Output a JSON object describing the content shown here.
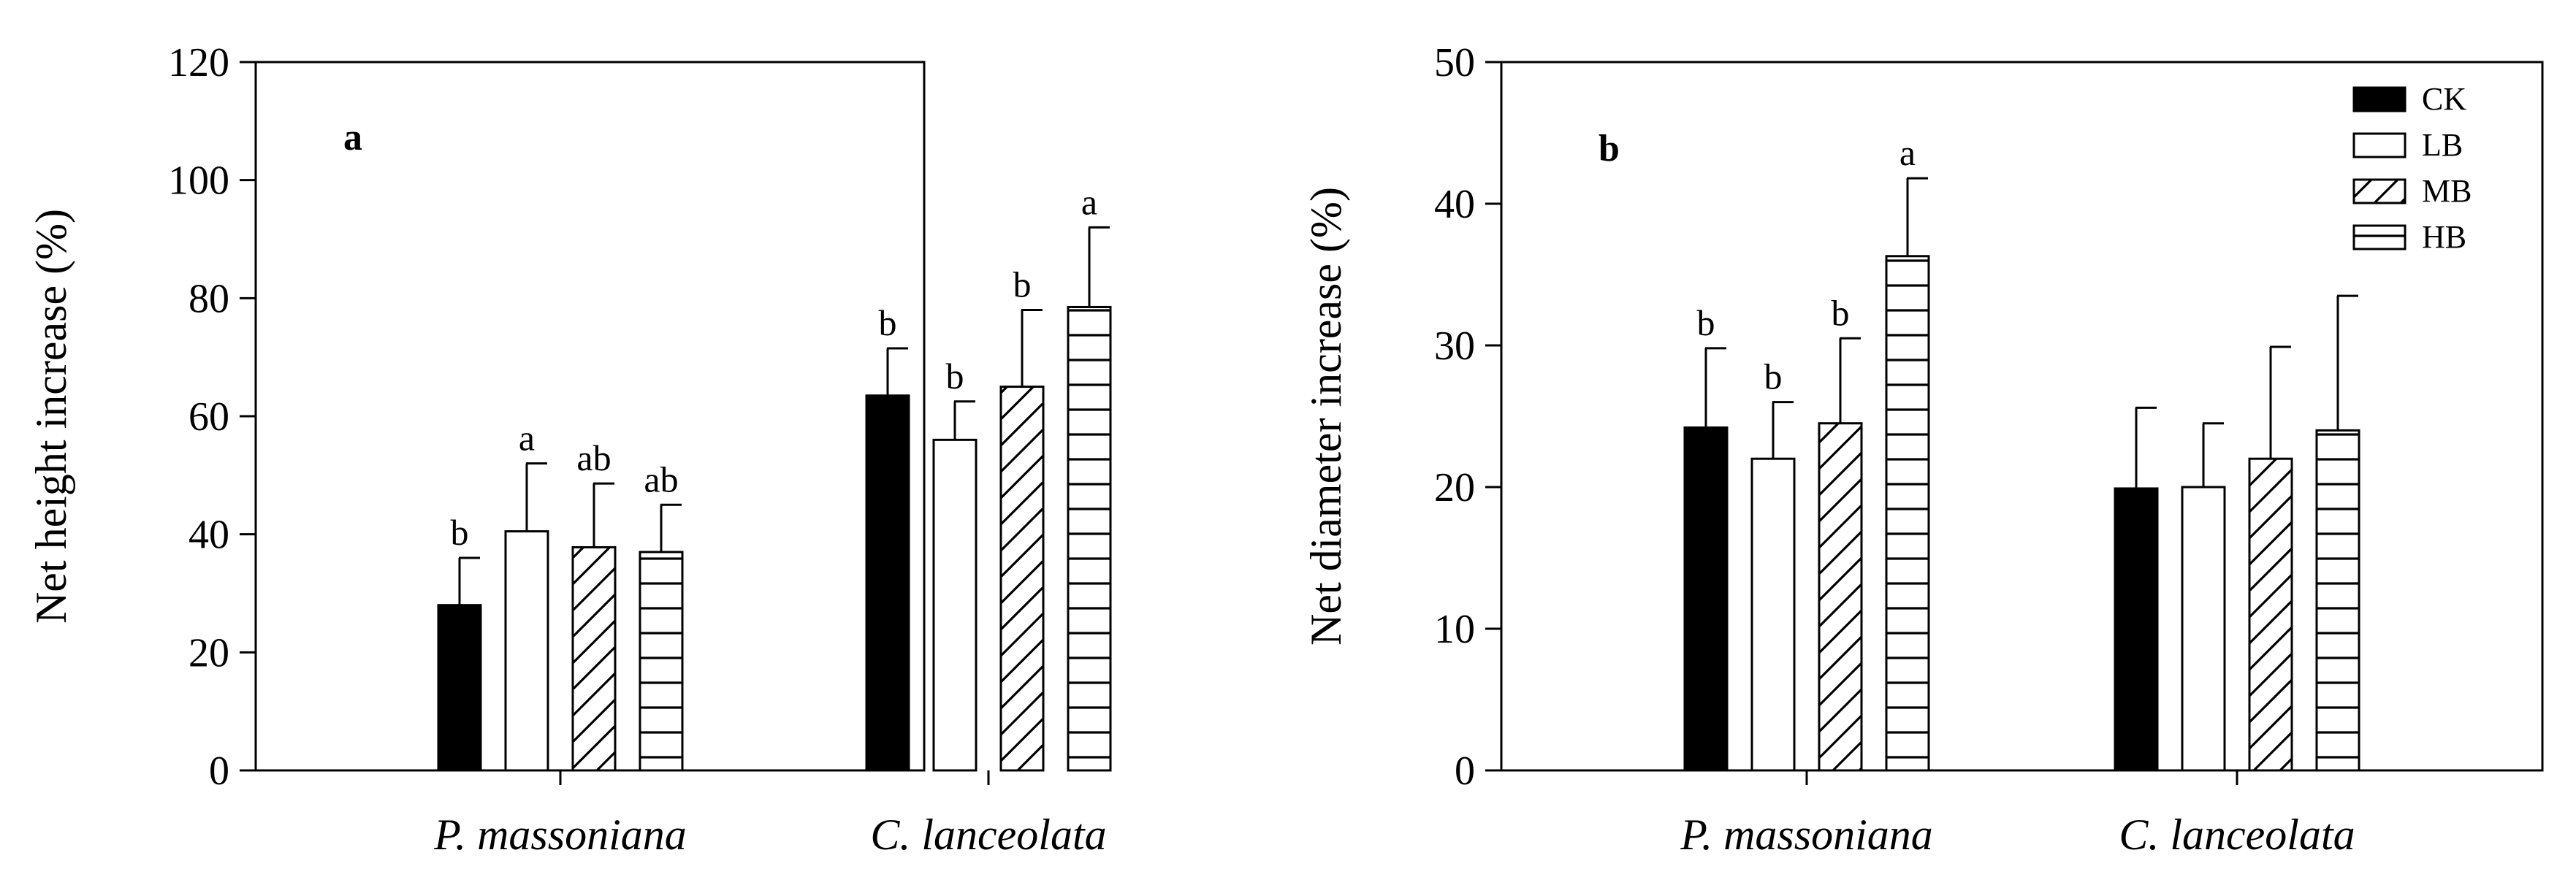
{
  "chart_data": [
    {
      "type": "bar",
      "panel_label": "a",
      "ylabel": "Net height increase (%)",
      "xlabel": "",
      "ylim": [
        0,
        120
      ],
      "yticks": [
        0,
        20,
        40,
        60,
        80,
        100,
        120
      ],
      "categories": [
        "P. massoniana",
        "C. lanceolata"
      ],
      "grid": false,
      "series": [
        {
          "name": "CK",
          "pattern": "solid",
          "values": [
            28,
            63.5
          ],
          "errors": [
            8,
            8
          ],
          "letters": [
            "b",
            "b"
          ]
        },
        {
          "name": "LB",
          "pattern": "open",
          "values": [
            40.5,
            56
          ],
          "errors": [
            11.5,
            6.5
          ],
          "letters": [
            "a",
            "b"
          ]
        },
        {
          "name": "MB",
          "pattern": "diagonal",
          "values": [
            37.8,
            65
          ],
          "errors": [
            10.8,
            13
          ],
          "letters": [
            "ab",
            "b"
          ]
        },
        {
          "name": "HB",
          "pattern": "horizontal",
          "values": [
            37,
            78.5
          ],
          "errors": [
            8,
            13.5
          ],
          "letters": [
            "ab",
            "a"
          ]
        }
      ]
    },
    {
      "type": "bar",
      "panel_label": "b",
      "ylabel": "Net diameter increase (%)",
      "xlabel": "",
      "ylim": [
        0,
        50
      ],
      "yticks": [
        0,
        10,
        20,
        30,
        40,
        50
      ],
      "categories": [
        "P. massoniana",
        "C. lanceolata"
      ],
      "grid": false,
      "legend_position": "top-right",
      "series": [
        {
          "name": "CK",
          "pattern": "solid",
          "values": [
            24.2,
            19.9
          ],
          "errors": [
            5.6,
            5.7
          ],
          "letters": [
            "b",
            ""
          ]
        },
        {
          "name": "LB",
          "pattern": "open",
          "values": [
            22,
            20
          ],
          "errors": [
            4,
            4.5
          ],
          "letters": [
            "b",
            ""
          ]
        },
        {
          "name": "MB",
          "pattern": "diagonal",
          "values": [
            24.5,
            22
          ],
          "errors": [
            6,
            7.9
          ],
          "letters": [
            "b",
            ""
          ]
        },
        {
          "name": "HB",
          "pattern": "horizontal",
          "values": [
            36.3,
            24
          ],
          "errors": [
            5.5,
            9.5
          ],
          "letters": [
            "a",
            ""
          ]
        }
      ]
    }
  ]
}
